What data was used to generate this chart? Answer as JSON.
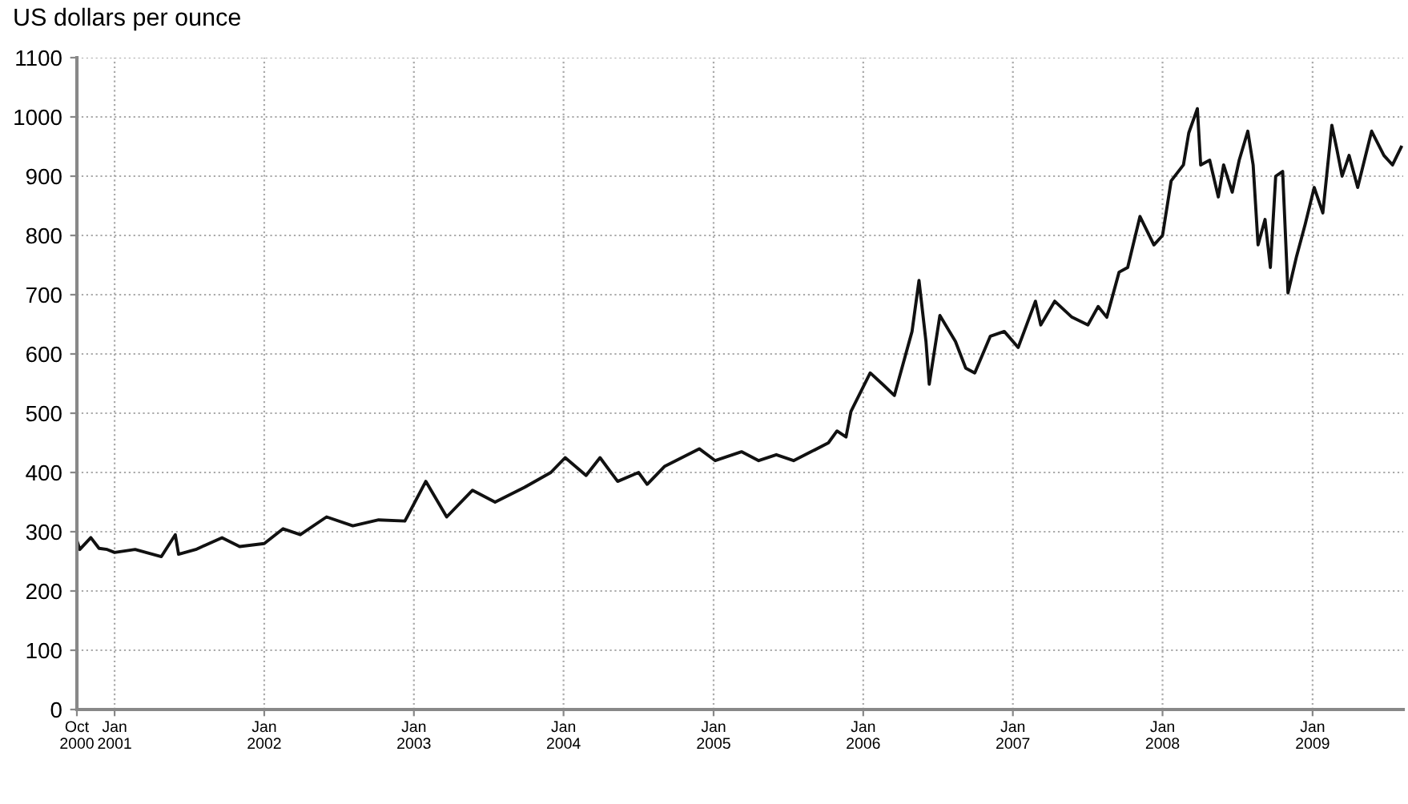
{
  "chart_data": {
    "type": "line",
    "ylabel": "US dollars per ounce",
    "x": [
      "2000-10-01",
      "2000-10-08",
      "2000-11-04",
      "2000-11-24",
      "2000-12-14",
      "2001-01-01",
      "2001-02-20",
      "2001-04-25",
      "2001-05-29",
      "2001-06-06",
      "2001-07-18",
      "2001-09-20",
      "2001-11-02",
      "2002-01-01",
      "2002-02-16",
      "2002-03-30",
      "2002-06-02",
      "2002-08-05",
      "2002-10-07",
      "2002-12-10",
      "2003-01-30",
      "2003-03-22",
      "2003-05-24",
      "2003-07-18",
      "2003-09-28",
      "2003-12-01",
      "2004-01-05",
      "2004-02-25",
      "2004-03-30",
      "2004-05-12",
      "2004-07-02",
      "2004-07-23",
      "2004-09-03",
      "2004-11-27",
      "2005-01-05",
      "2005-03-10",
      "2005-04-21",
      "2005-06-03",
      "2005-07-15",
      "2005-08-27",
      "2005-10-08",
      "2005-10-29",
      "2005-11-20",
      "2005-12-02",
      "2006-01-18",
      "2006-02-17",
      "2006-03-18",
      "2006-04-30",
      "2006-05-17",
      "2006-06-03",
      "2006-06-11",
      "2006-07-07",
      "2006-08-14",
      "2006-09-08",
      "2006-09-30",
      "2006-11-07",
      "2006-12-11",
      "2007-01-14",
      "2007-02-25",
      "2007-03-10",
      "2007-04-13",
      "2007-05-25",
      "2007-07-03",
      "2007-07-28",
      "2007-08-18",
      "2007-09-17",
      "2007-10-08",
      "2007-11-07",
      "2007-12-11",
      "2008-01-01",
      "2008-01-22",
      "2008-02-21",
      "2008-03-05",
      "2008-03-26",
      "2008-04-03",
      "2008-04-25",
      "2008-05-16",
      "2008-05-29",
      "2008-06-19",
      "2008-07-06",
      "2008-07-27",
      "2008-08-09",
      "2008-08-21",
      "2008-09-07",
      "2008-09-20",
      "2008-10-03",
      "2008-10-20",
      "2008-11-02",
      "2008-11-23",
      "2008-12-14",
      "2009-01-05",
      "2009-01-26",
      "2009-02-17",
      "2009-03-01",
      "2009-03-14",
      "2009-03-31",
      "2009-04-21",
      "2009-05-25",
      "2009-06-24",
      "2009-07-15",
      "2009-08-05"
    ],
    "series": [
      {
        "color": "#111111",
        "values": [
          285,
          270,
          290,
          272,
          270,
          265,
          270,
          258,
          295,
          262,
          270,
          290,
          275,
          280,
          305,
          295,
          325,
          310,
          320,
          318,
          385,
          325,
          370,
          350,
          375,
          400,
          425,
          395,
          425,
          385,
          400,
          380,
          410,
          440,
          420,
          435,
          420,
          430,
          420,
          435,
          450,
          470,
          460,
          503,
          568,
          549,
          530,
          638,
          724,
          621,
          549,
          665,
          621,
          576,
          568,
          630,
          638,
          611,
          689,
          649,
          689,
          662,
          649,
          680,
          662,
          738,
          746,
          832,
          784,
          800,
          892,
          919,
          973,
          1014,
          919,
          927,
          865,
          919,
          873,
          927,
          976,
          919,
          784,
          827,
          746,
          900,
          908,
          703,
          765,
          819,
          881,
          838,
          986,
          946,
          900,
          935,
          881,
          976,
          935,
          919,
          949
        ]
      }
    ],
    "xlim": [
      "2000-10-01",
      "2009-08-10"
    ],
    "xticks": [
      {
        "value": "2000-10-01",
        "label": "Oct\n2000"
      },
      {
        "value": "2001-01-01",
        "label": "Jan\n2001"
      },
      {
        "value": "2002-01-01",
        "label": "Jan\n2002"
      },
      {
        "value": "2003-01-01",
        "label": "Jan\n2003"
      },
      {
        "value": "2004-01-01",
        "label": "Jan\n2004"
      },
      {
        "value": "2005-01-01",
        "label": "Jan\n2005"
      },
      {
        "value": "2006-01-01",
        "label": "Jan\n2006"
      },
      {
        "value": "2007-01-01",
        "label": "Jan\n2007"
      },
      {
        "value": "2008-01-01",
        "label": "Jan\n2008"
      },
      {
        "value": "2009-01-01",
        "label": "Jan\n2009"
      }
    ],
    "ylim": [
      0,
      1100
    ],
    "yticks": [
      0,
      100,
      200,
      300,
      400,
      500,
      600,
      700,
      800,
      900,
      1000,
      1100
    ],
    "grid": true,
    "line_style": "solid"
  }
}
